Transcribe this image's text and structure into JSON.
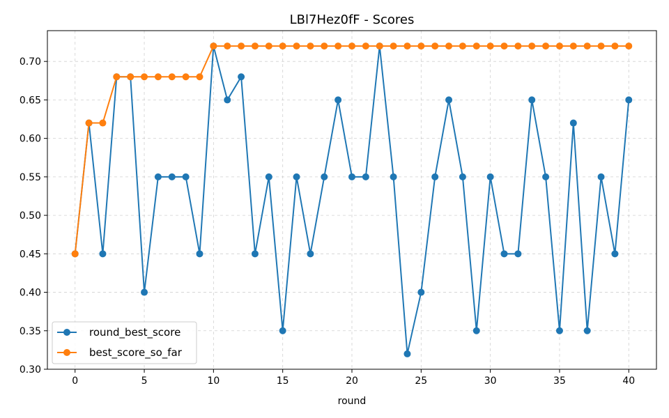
{
  "chart_data": {
    "type": "line",
    "title": "LBl7Hez0fF - Scores",
    "xlabel": "round",
    "ylabel": "",
    "xlim": [
      -2,
      42
    ],
    "ylim": [
      0.3,
      0.74
    ],
    "xticks": [
      0,
      5,
      10,
      15,
      20,
      25,
      30,
      35,
      40
    ],
    "yticks": [
      0.3,
      0.35,
      0.4,
      0.45,
      0.5,
      0.55,
      0.6,
      0.65,
      0.7
    ],
    "grid": true,
    "legend_position": "lower-left",
    "x": [
      0,
      1,
      2,
      3,
      4,
      5,
      6,
      7,
      8,
      9,
      10,
      11,
      12,
      13,
      14,
      15,
      16,
      17,
      18,
      19,
      20,
      21,
      22,
      23,
      24,
      25,
      26,
      27,
      28,
      29,
      30,
      31,
      32,
      33,
      34,
      35,
      36,
      37,
      38,
      39,
      40
    ],
    "series": [
      {
        "name": "round_best_score",
        "color": "#1f77b4",
        "values": [
          0.45,
          0.62,
          0.45,
          0.68,
          0.68,
          0.4,
          0.55,
          0.55,
          0.55,
          0.45,
          0.72,
          0.65,
          0.68,
          0.45,
          0.55,
          0.35,
          0.55,
          0.45,
          0.55,
          0.65,
          0.55,
          0.55,
          0.72,
          0.55,
          0.32,
          0.4,
          0.55,
          0.65,
          0.55,
          0.35,
          0.55,
          0.45,
          0.45,
          0.65,
          0.55,
          0.35,
          0.62,
          0.35,
          0.55,
          0.45,
          0.65
        ]
      },
      {
        "name": "best_score_so_far",
        "color": "#ff7f0e",
        "values": [
          0.45,
          0.62,
          0.62,
          0.68,
          0.68,
          0.68,
          0.68,
          0.68,
          0.68,
          0.68,
          0.72,
          0.72,
          0.72,
          0.72,
          0.72,
          0.72,
          0.72,
          0.72,
          0.72,
          0.72,
          0.72,
          0.72,
          0.72,
          0.72,
          0.72,
          0.72,
          0.72,
          0.72,
          0.72,
          0.72,
          0.72,
          0.72,
          0.72,
          0.72,
          0.72,
          0.72,
          0.72,
          0.72,
          0.72,
          0.72,
          0.72
        ]
      }
    ]
  }
}
